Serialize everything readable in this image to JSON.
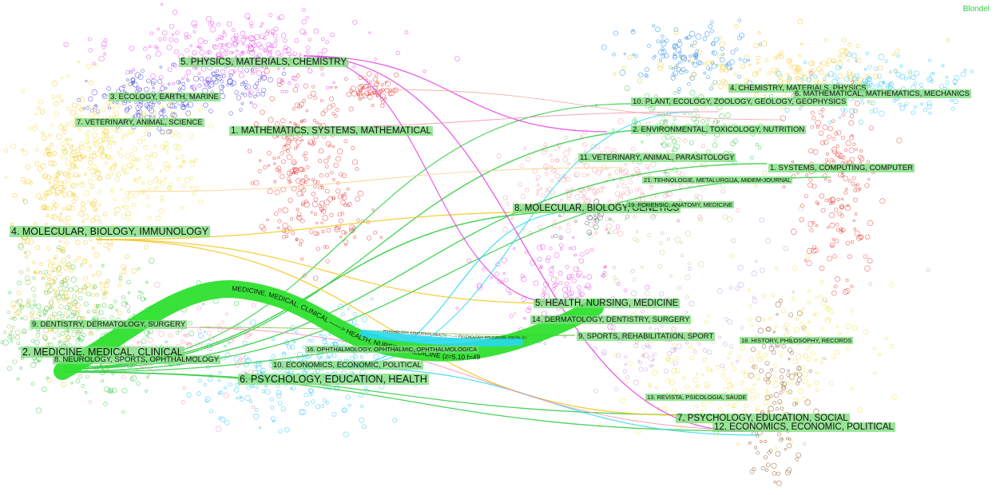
{
  "algorithm_label": "Blondel",
  "left_clusters": [
    {
      "id": "L1",
      "label": "1. MATHEMATICS, SYSTEMS, MATHEMATICAL",
      "color": "#e53935"
    },
    {
      "id": "L2",
      "label": "2. MEDICINE, MEDICAL, CLINICAL",
      "color": "#2ecc40"
    },
    {
      "id": "L3",
      "label": "3. ECOLOGY, EARTH, MARINE",
      "color": "#3f3fd8"
    },
    {
      "id": "L4",
      "label": "4. MOLECULAR, BIOLOGY, IMMUNOLOGY",
      "color": "#f5c518"
    },
    {
      "id": "L5",
      "label": "5. PHYSICS, MATERIALS, CHEMISTRY",
      "color": "#e83ee8"
    },
    {
      "id": "L6",
      "label": "6. PSYCHOLOGY, EDUCATION, HEALTH",
      "color": "#29c5f6"
    },
    {
      "id": "L7",
      "label": "7. VETERINARY, ANIMAL, SCIENCE",
      "color": "#f0e040"
    },
    {
      "id": "L8",
      "label": "8. NEUROLOGY, SPORTS, OPHTHALMOLOGY",
      "color": "#8bc34a"
    },
    {
      "id": "L9",
      "label": "9. DENTISTRY, DERMATOLOGY, SURGERY",
      "color": "#9e9e9e"
    },
    {
      "id": "L10",
      "label": "10. ECONOMICS, ECONOMIC, POLITICAL",
      "color": "#f48fb1"
    },
    {
      "id": "L16",
      "label": "16. OPHTHALMOLOGY, OPHTHALMIC, OPHTHALMOLOGICA",
      "color": "#4dd0e1"
    }
  ],
  "right_clusters": [
    {
      "id": "R1",
      "label": "1. SYSTEMS, COMPUTING, COMPUTER",
      "color": "#e53935"
    },
    {
      "id": "R2",
      "label": "2. ENVIRONMENTAL, TOXICOLOGY, NUTRITION",
      "color": "#2ecc40"
    },
    {
      "id": "R4",
      "label": "4. CHEMISTRY, MATERIALS, PHYSICS",
      "color": "#f5c518"
    },
    {
      "id": "R5",
      "label": "5. HEALTH, NURSING, MEDICINE",
      "color": "#e83ee8"
    },
    {
      "id": "R6",
      "label": "6. MATHEMATICAL, MATHEMATICS, MECHANICS",
      "color": "#29c5f6"
    },
    {
      "id": "R7",
      "label": "7. PSYCHOLOGY, EDUCATION, SOCIAL",
      "color": "#f0e040"
    },
    {
      "id": "R8",
      "label": "8. MOLECULAR, BIOLOGY, GENETICS",
      "color": "#ef9a9a"
    },
    {
      "id": "R9",
      "label": "9. SPORTS, REHABILITATION, SPORT",
      "color": "#8bc34a"
    },
    {
      "id": "R10",
      "label": "10. PLANT, ECOLOGY, ZOOLOGY, GEOLOGY, GEOPHYSICS",
      "color": "#1e88e5"
    },
    {
      "id": "R11",
      "label": "11. VETERINARY, ANIMAL, PARASITOLOGY",
      "color": "#ffcc80"
    },
    {
      "id": "R12",
      "label": "12. ECONOMICS, ECONOMIC, POLITICAL",
      "color": "#8d5524"
    },
    {
      "id": "R13",
      "label": "13. REVISTA, PSICOLOGIA, SAUDE",
      "color": "#fff176"
    },
    {
      "id": "R14",
      "label": "14. DERMATOLOGY, DENTISTRY, SURGERY",
      "color": "#ce93d8"
    },
    {
      "id": "R18",
      "label": "18. HISTORY, PHILOSOPHY, RECORDS",
      "color": "#a1887f"
    },
    {
      "id": "R19",
      "label": "19. FORENSIC, ANATOMY, MEDICINE",
      "color": "#546e7a"
    },
    {
      "id": "R21",
      "label": "21. TEHNOLOGIE, METALURGIJA, MIDEM-JOURNAL",
      "color": "#aed581"
    }
  ],
  "main_flow": {
    "label": "MEDICINE, MEDICAL, CLINICAL ——> HEALTH, NURSING, MEDICINE (z=5.10 f=49989)",
    "color": "#2ee02e"
  },
  "secondary_flow": {
    "label": "PSYCHOLOGY, EDUCATION, HEALTH ——> PSYCHOLOGY, EDUCATION, SOCIAL (z=2.49 f=12,003)",
    "color": "#29d8f0"
  }
}
